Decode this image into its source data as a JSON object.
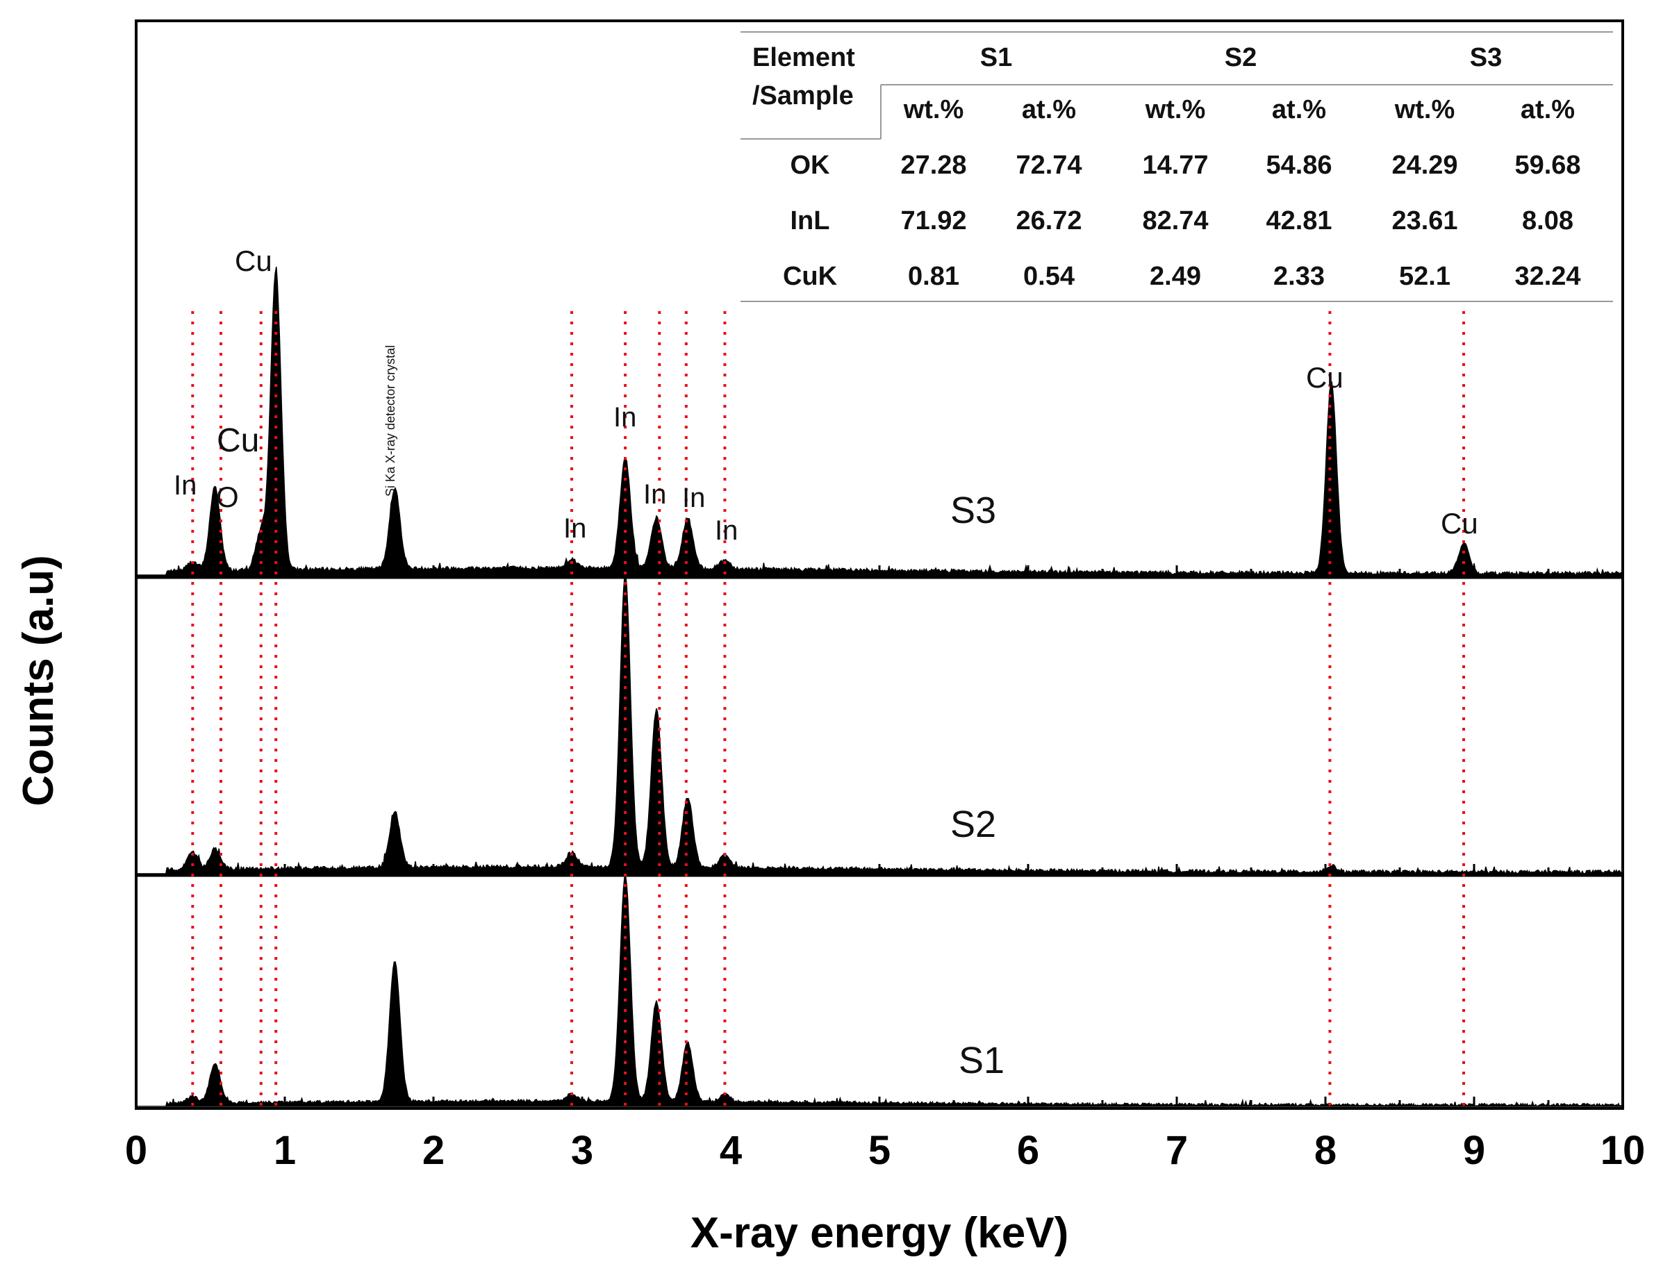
{
  "chart_data": {
    "type": "line",
    "title": "",
    "xlabel": "X-ray energy (keV)",
    "ylabel": "Counts (a.u)",
    "xlim": [
      0,
      10
    ],
    "x_ticks": [
      "0",
      "1",
      "2",
      "3",
      "4",
      "5",
      "6",
      "7",
      "8",
      "9",
      "10"
    ],
    "reference_lines_keV": [
      0.38,
      0.57,
      0.84,
      0.94,
      2.93,
      3.29,
      3.52,
      3.7,
      3.96,
      8.03,
      8.93
    ],
    "series": [
      {
        "name": "S3",
        "peaks": [
          {
            "x": 0.38,
            "y": 0.03
          },
          {
            "x": 0.53,
            "y": 0.28
          },
          {
            "x": 0.84,
            "y": 0.13
          },
          {
            "x": 0.94,
            "y": 1.0
          },
          {
            "x": 1.74,
            "y": 0.27
          },
          {
            "x": 2.93,
            "y": 0.03
          },
          {
            "x": 3.29,
            "y": 0.37
          },
          {
            "x": 3.5,
            "y": 0.17
          },
          {
            "x": 3.71,
            "y": 0.17
          },
          {
            "x": 3.96,
            "y": 0.03
          },
          {
            "x": 8.04,
            "y": 0.64
          },
          {
            "x": 8.93,
            "y": 0.1
          }
        ]
      },
      {
        "name": "S2",
        "peaks": [
          {
            "x": 0.38,
            "y": 0.06
          },
          {
            "x": 0.53,
            "y": 0.07
          },
          {
            "x": 1.74,
            "y": 0.19
          },
          {
            "x": 2.93,
            "y": 0.05
          },
          {
            "x": 3.29,
            "y": 1.0
          },
          {
            "x": 3.5,
            "y": 0.54
          },
          {
            "x": 3.71,
            "y": 0.24
          },
          {
            "x": 3.96,
            "y": 0.04
          },
          {
            "x": 8.04,
            "y": 0.02
          }
        ]
      },
      {
        "name": "S1",
        "peaks": [
          {
            "x": 0.38,
            "y": 0.03
          },
          {
            "x": 0.53,
            "y": 0.17
          },
          {
            "x": 1.74,
            "y": 0.62
          },
          {
            "x": 2.93,
            "y": 0.03
          },
          {
            "x": 3.29,
            "y": 1.0
          },
          {
            "x": 3.5,
            "y": 0.44
          },
          {
            "x": 3.71,
            "y": 0.26
          },
          {
            "x": 3.96,
            "y": 0.03
          }
        ]
      }
    ],
    "peak_labels": [
      {
        "text": "In",
        "x": 0.35,
        "panel": "S3"
      },
      {
        "text": "O",
        "x": 0.63,
        "panel": "S3"
      },
      {
        "text": "Cu",
        "x": 0.7,
        "panel": "S3"
      },
      {
        "text": "Cu",
        "x": 0.82,
        "panel": "S3"
      },
      {
        "text": "Si Ka X-ray detector crystal",
        "x": 1.73,
        "panel": "S3",
        "rotated": true
      },
      {
        "text": "In",
        "x": 2.96,
        "panel": "S3"
      },
      {
        "text": "In",
        "x": 3.22,
        "panel": "S3"
      },
      {
        "text": "In",
        "x": 3.51,
        "panel": "S3"
      },
      {
        "text": "In",
        "x": 3.73,
        "panel": "S3"
      },
      {
        "text": "In",
        "x": 3.97,
        "panel": "S3"
      },
      {
        "text": "Cu",
        "x": 8.0,
        "panel": "S3"
      },
      {
        "text": "Cu",
        "x": 8.93,
        "panel": "S3"
      }
    ]
  },
  "table": {
    "header_element": [
      "Element",
      "/Sample"
    ],
    "samples": [
      "S1",
      "S2",
      "S3"
    ],
    "subheaders": [
      "wt.%",
      "at.%",
      "wt.%",
      "at.%",
      "wt.%",
      "at.%"
    ],
    "rows": [
      {
        "element": "OK",
        "values": [
          "27.28",
          "72.74",
          "14.77",
          "54.86",
          "24.29",
          "59.68"
        ]
      },
      {
        "element": "InL",
        "values": [
          "71.92",
          "26.72",
          "82.74",
          "42.81",
          "23.61",
          "8.08"
        ]
      },
      {
        "element": "CuK",
        "values": [
          "0.81",
          "0.54",
          "2.49",
          "2.33",
          "52.1",
          "32.24"
        ]
      }
    ]
  },
  "colors": {
    "spectrum": "#000000",
    "reference_line": "#e8101a",
    "frame": "#000000"
  }
}
